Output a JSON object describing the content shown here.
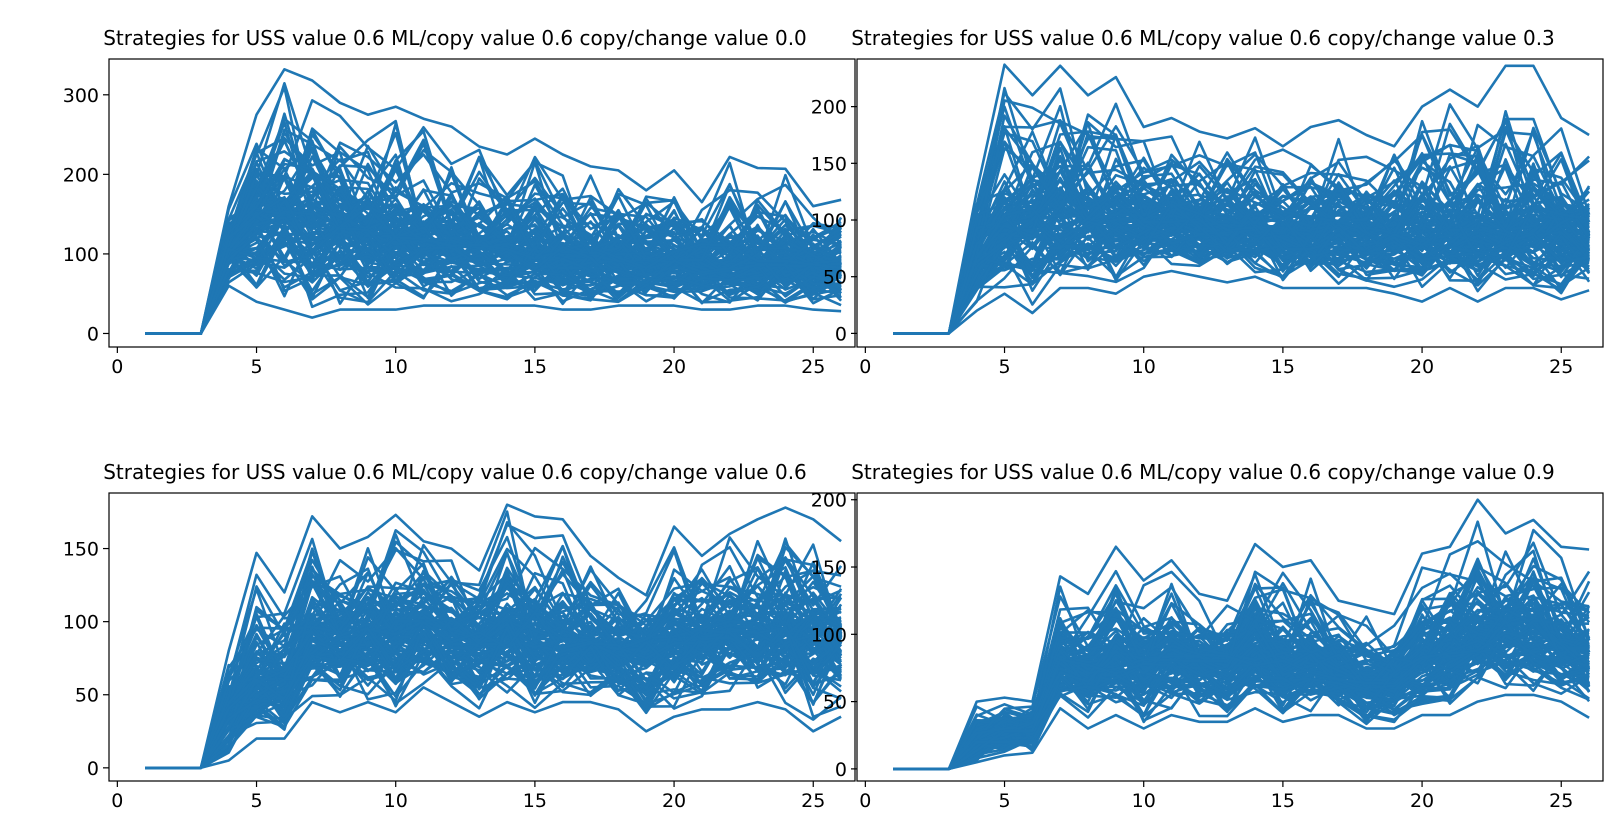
{
  "series_color": "#1f77b4",
  "panels": [
    {
      "title": "Strategies for USS value 0.6 ML/copy value 0.6 copy/change value 0.0"
    },
    {
      "title": "Strategies for USS value 0.6 ML/copy value 0.6 copy/change value 0.3"
    },
    {
      "title": "Strategies for USS value 0.6 ML/copy value 0.6 copy/change value 0.6"
    },
    {
      "title": "Strategies for USS value 0.6 ML/copy value 0.6 copy/change value 0.9"
    }
  ],
  "chart_data": [
    {
      "type": "line",
      "title": "Strategies for USS value 0.6 ML/copy value 0.6 copy/change value 0.0",
      "xlabel": "",
      "ylabel": "",
      "xlim": [
        -0.3,
        26.5
      ],
      "ylim": [
        -17,
        345
      ],
      "xticks": [
        0,
        5,
        10,
        15,
        20,
        25
      ],
      "yticks": [
        0,
        100,
        200,
        300
      ],
      "x": [
        1,
        2,
        3,
        4,
        5,
        6,
        7,
        8,
        9,
        10,
        11,
        12,
        13,
        14,
        15,
        16,
        17,
        18,
        19,
        20,
        21,
        22,
        23,
        24,
        25,
        26
      ],
      "series_count": 100,
      "series_summary": {
        "min": [
          0,
          0,
          0,
          60,
          40,
          30,
          20,
          30,
          30,
          30,
          35,
          35,
          35,
          35,
          35,
          30,
          30,
          35,
          35,
          35,
          30,
          30,
          35,
          35,
          30,
          28
        ],
        "median": [
          0,
          0,
          0,
          110,
          150,
          145,
          135,
          130,
          125,
          120,
          115,
          110,
          105,
          100,
          100,
          95,
          95,
          90,
          90,
          90,
          85,
          85,
          85,
          85,
          85,
          85
        ],
        "max": [
          0,
          0,
          0,
          160,
          275,
          332,
          318,
          290,
          275,
          285,
          270,
          260,
          235,
          225,
          245,
          225,
          210,
          205,
          180,
          205,
          165,
          222,
          208,
          207,
          160,
          168
        ]
      }
    },
    {
      "type": "line",
      "title": "Strategies for USS value 0.6 ML/copy value 0.6 copy/change value 0.3",
      "xlabel": "",
      "ylabel": "",
      "xlim": [
        -0.3,
        26.5
      ],
      "ylim": [
        -12,
        242
      ],
      "xticks": [
        0,
        5,
        10,
        15,
        20,
        25
      ],
      "yticks": [
        0,
        50,
        100,
        150,
        200
      ],
      "x": [
        1,
        2,
        3,
        4,
        5,
        6,
        7,
        8,
        9,
        10,
        11,
        12,
        13,
        14,
        15,
        16,
        17,
        18,
        19,
        20,
        21,
        22,
        23,
        24,
        25,
        26
      ],
      "series_count": 100,
      "series_summary": {
        "min": [
          0,
          0,
          0,
          20,
          35,
          18,
          40,
          40,
          35,
          50,
          55,
          50,
          45,
          50,
          40,
          40,
          40,
          40,
          35,
          28,
          40,
          28,
          40,
          40,
          30,
          38
        ],
        "median": [
          0,
          0,
          0,
          70,
          95,
          100,
          105,
          100,
          100,
          100,
          100,
          98,
          95,
          95,
          92,
          90,
          90,
          88,
          88,
          88,
          90,
          90,
          90,
          90,
          88,
          85
        ],
        "max": [
          0,
          0,
          0,
          125,
          237,
          210,
          236,
          210,
          226,
          182,
          190,
          178,
          172,
          181,
          165,
          182,
          188,
          175,
          165,
          200,
          215,
          200,
          236,
          236,
          190,
          175
        ]
      }
    },
    {
      "type": "line",
      "title": "Strategies for USS value 0.6 ML/copy value 0.6 copy/change value 0.6",
      "xlabel": "",
      "ylabel": "",
      "xlim": [
        -0.3,
        26.5
      ],
      "ylim": [
        -9,
        188
      ],
      "xticks": [
        0,
        5,
        10,
        15,
        20,
        25
      ],
      "yticks": [
        0,
        50,
        100,
        150
      ],
      "x": [
        1,
        2,
        3,
        4,
        5,
        6,
        7,
        8,
        9,
        10,
        11,
        12,
        13,
        14,
        15,
        16,
        17,
        18,
        19,
        20,
        21,
        22,
        23,
        24,
        25,
        26
      ],
      "series_count": 100,
      "series_summary": {
        "min": [
          0,
          0,
          0,
          5,
          20,
          20,
          45,
          38,
          45,
          38,
          55,
          45,
          35,
          45,
          38,
          45,
          45,
          40,
          25,
          35,
          40,
          40,
          45,
          40,
          25,
          35
        ],
        "median": [
          0,
          0,
          0,
          40,
          60,
          60,
          95,
          90,
          95,
          90,
          100,
          92,
          85,
          95,
          85,
          88,
          85,
          80,
          80,
          88,
          90,
          95,
          90,
          95,
          90,
          90
        ],
        "max": [
          0,
          0,
          0,
          80,
          147,
          120,
          172,
          150,
          158,
          173,
          155,
          150,
          135,
          180,
          172,
          170,
          145,
          130,
          118,
          165,
          145,
          160,
          170,
          178,
          170,
          155
        ]
      }
    },
    {
      "type": "line",
      "title": "Strategies for USS value 0.6 ML/copy value 0.6 copy/change value 0.9",
      "xlabel": "",
      "ylabel": "",
      "xlim": [
        -0.3,
        26.5
      ],
      "ylim": [
        -9,
        205
      ],
      "xticks": [
        0,
        5,
        10,
        15,
        20,
        25
      ],
      "yticks": [
        0,
        50,
        100,
        150,
        200
      ],
      "x": [
        1,
        2,
        3,
        4,
        5,
        6,
        7,
        8,
        9,
        10,
        11,
        12,
        13,
        14,
        15,
        16,
        17,
        18,
        19,
        20,
        21,
        22,
        23,
        24,
        25,
        26
      ],
      "series_count": 100,
      "series_summary": {
        "min": [
          0,
          0,
          0,
          5,
          10,
          12,
          45,
          30,
          40,
          30,
          40,
          35,
          35,
          45,
          35,
          40,
          40,
          30,
          30,
          40,
          40,
          50,
          55,
          55,
          50,
          38
        ],
        "median": [
          0,
          0,
          0,
          20,
          30,
          30,
          80,
          75,
          85,
          75,
          90,
          80,
          75,
          90,
          75,
          80,
          75,
          65,
          70,
          85,
          90,
          100,
          105,
          110,
          95,
          85
        ],
        "max": [
          0,
          0,
          0,
          50,
          53,
          50,
          143,
          130,
          165,
          140,
          155,
          130,
          125,
          167,
          150,
          155,
          125,
          120,
          115,
          160,
          165,
          200,
          175,
          185,
          165,
          163
        ]
      }
    }
  ]
}
